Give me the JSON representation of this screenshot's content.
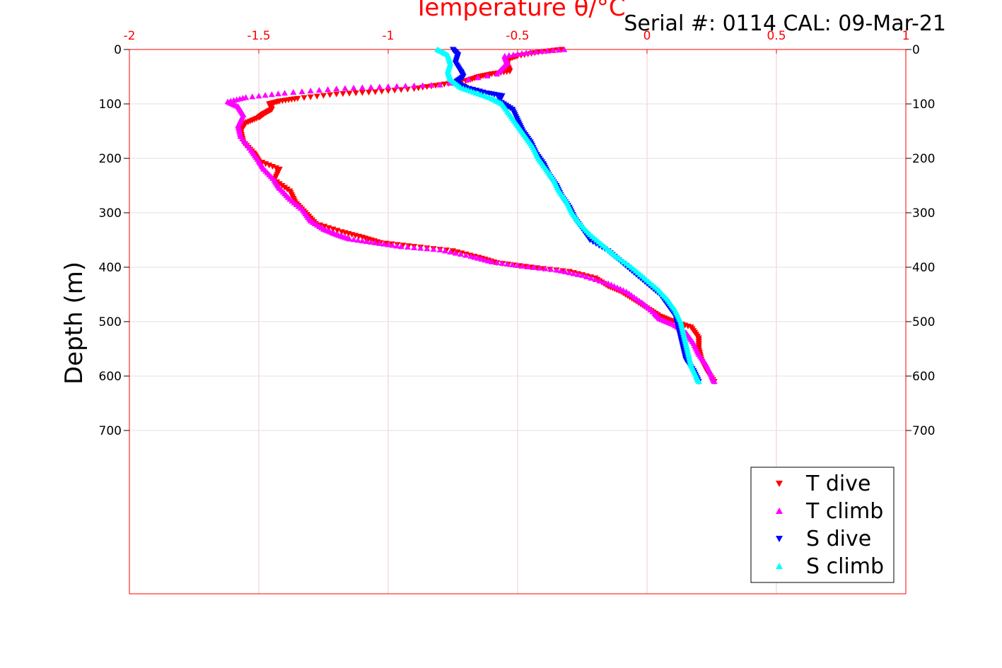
{
  "chart_data": {
    "type": "scatter",
    "xlabel": "Temperature θ/°C",
    "ylabel": "Depth (m)",
    "serial_text": "Serial #: 0114  CAL: 09-Mar-21",
    "xlim": [
      -2,
      1
    ],
    "ylim": [
      0,
      1000
    ],
    "x_ticks": [
      -2,
      -1.5,
      -1,
      -0.5,
      0,
      0.5,
      1
    ],
    "x_tick_labels": [
      "-2",
      "-1.5",
      "-1",
      "-0.5",
      "0",
      "0.5",
      "1"
    ],
    "y_ticks": [
      0,
      100,
      200,
      300,
      400,
      500,
      600,
      700
    ],
    "y_tick_labels": [
      "0",
      "100",
      "200",
      "300",
      "400",
      "500",
      "600",
      "700"
    ],
    "y_reversed": true,
    "grid": true,
    "legend_position": "bottom-right",
    "colors": {
      "axis": "#ff0000",
      "grid": "#f2c8cf"
    },
    "series": [
      {
        "name": "T dive",
        "marker": "triangle-down",
        "color": "#ff0000",
        "points": [
          [
            -0.33,
            0
          ],
          [
            -0.42,
            5
          ],
          [
            -0.5,
            12
          ],
          [
            -0.54,
            18
          ],
          [
            -0.54,
            30
          ],
          [
            -0.53,
            40
          ],
          [
            -0.6,
            45
          ],
          [
            -0.65,
            50
          ],
          [
            -0.7,
            58
          ],
          [
            -0.8,
            65
          ],
          [
            -0.9,
            72
          ],
          [
            -1.05,
            78
          ],
          [
            -1.2,
            82
          ],
          [
            -1.35,
            90
          ],
          [
            -1.42,
            95
          ],
          [
            -1.46,
            100
          ],
          [
            -1.45,
            110
          ],
          [
            -1.48,
            118
          ],
          [
            -1.5,
            125
          ],
          [
            -1.55,
            135
          ],
          [
            -1.57,
            150
          ],
          [
            -1.56,
            170
          ],
          [
            -1.52,
            190
          ],
          [
            -1.5,
            205
          ],
          [
            -1.42,
            220
          ],
          [
            -1.44,
            240
          ],
          [
            -1.38,
            260
          ],
          [
            -1.36,
            280
          ],
          [
            -1.32,
            300
          ],
          [
            -1.28,
            320
          ],
          [
            -1.18,
            335
          ],
          [
            -1.1,
            345
          ],
          [
            -1.03,
            355
          ],
          [
            -0.9,
            362
          ],
          [
            -0.75,
            370
          ],
          [
            -0.65,
            382
          ],
          [
            -0.58,
            392
          ],
          [
            -0.45,
            400
          ],
          [
            -0.3,
            408
          ],
          [
            -0.2,
            420
          ],
          [
            -0.15,
            435
          ],
          [
            -0.1,
            445
          ],
          [
            -0.05,
            460
          ],
          [
            0.0,
            475
          ],
          [
            0.05,
            490
          ],
          [
            0.1,
            500
          ],
          [
            0.17,
            510
          ],
          [
            0.2,
            530
          ],
          [
            0.2,
            550
          ],
          [
            0.21,
            570
          ],
          [
            0.23,
            590
          ],
          [
            0.26,
            610
          ]
        ]
      },
      {
        "name": "T climb",
        "marker": "triangle-up",
        "color": "#ff00ff",
        "points": [
          [
            -0.32,
            0
          ],
          [
            -0.45,
            5
          ],
          [
            -0.55,
            12
          ],
          [
            -0.54,
            25
          ],
          [
            -0.58,
            45
          ],
          [
            -0.8,
            65
          ],
          [
            -1.0,
            68
          ],
          [
            -1.2,
            72
          ],
          [
            -1.4,
            80
          ],
          [
            -1.55,
            88
          ],
          [
            -1.62,
            96
          ],
          [
            -1.58,
            105
          ],
          [
            -1.56,
            120
          ],
          [
            -1.58,
            140
          ],
          [
            -1.57,
            160
          ],
          [
            -1.53,
            185
          ],
          [
            -1.5,
            205
          ],
          [
            -1.48,
            220
          ],
          [
            -1.44,
            240
          ],
          [
            -1.42,
            255
          ],
          [
            -1.38,
            275
          ],
          [
            -1.33,
            295
          ],
          [
            -1.3,
            315
          ],
          [
            -1.25,
            330
          ],
          [
            -1.2,
            340
          ],
          [
            -1.15,
            348
          ],
          [
            -1.05,
            355
          ],
          [
            -0.95,
            362
          ],
          [
            -0.8,
            368
          ],
          [
            -0.68,
            380
          ],
          [
            -0.6,
            390
          ],
          [
            -0.48,
            398
          ],
          [
            -0.35,
            405
          ],
          [
            -0.25,
            415
          ],
          [
            -0.15,
            430
          ],
          [
            -0.08,
            445
          ],
          [
            -0.02,
            465
          ],
          [
            0.03,
            485
          ],
          [
            0.05,
            495
          ],
          [
            0.1,
            505
          ],
          [
            0.15,
            520
          ],
          [
            0.18,
            540
          ],
          [
            0.2,
            560
          ],
          [
            0.23,
            580
          ],
          [
            0.25,
            600
          ],
          [
            0.26,
            610
          ]
        ]
      },
      {
        "name": "S dive",
        "marker": "triangle-down",
        "color": "#0000ff",
        "points": [
          [
            -0.75,
            0
          ],
          [
            -0.73,
            10
          ],
          [
            -0.74,
            25
          ],
          [
            -0.72,
            40
          ],
          [
            -0.71,
            50
          ],
          [
            -0.74,
            60
          ],
          [
            -0.7,
            70
          ],
          [
            -0.62,
            80
          ],
          [
            -0.56,
            85
          ],
          [
            -0.57,
            95
          ],
          [
            -0.52,
            110
          ],
          [
            -0.5,
            130
          ],
          [
            -0.48,
            150
          ],
          [
            -0.45,
            170
          ],
          [
            -0.43,
            190
          ],
          [
            -0.4,
            210
          ],
          [
            -0.38,
            230
          ],
          [
            -0.35,
            250
          ],
          [
            -0.33,
            270
          ],
          [
            -0.3,
            290
          ],
          [
            -0.28,
            310
          ],
          [
            -0.25,
            330
          ],
          [
            -0.22,
            350
          ],
          [
            -0.15,
            370
          ],
          [
            -0.1,
            390
          ],
          [
            -0.05,
            410
          ],
          [
            0.0,
            430
          ],
          [
            0.05,
            450
          ],
          [
            0.08,
            470
          ],
          [
            0.11,
            490
          ],
          [
            0.12,
            510
          ],
          [
            0.13,
            530
          ],
          [
            0.14,
            550
          ],
          [
            0.15,
            570
          ],
          [
            0.18,
            590
          ],
          [
            0.2,
            610
          ]
        ]
      },
      {
        "name": "S climb",
        "marker": "triangle-up",
        "color": "#00ffff",
        "points": [
          [
            -0.81,
            0
          ],
          [
            -0.77,
            10
          ],
          [
            -0.76,
            25
          ],
          [
            -0.77,
            40
          ],
          [
            -0.76,
            55
          ],
          [
            -0.72,
            70
          ],
          [
            -0.66,
            80
          ],
          [
            -0.6,
            90
          ],
          [
            -0.56,
            100
          ],
          [
            -0.53,
            120
          ],
          [
            -0.5,
            140
          ],
          [
            -0.47,
            160
          ],
          [
            -0.44,
            180
          ],
          [
            -0.42,
            200
          ],
          [
            -0.39,
            220
          ],
          [
            -0.36,
            240
          ],
          [
            -0.34,
            260
          ],
          [
            -0.31,
            280
          ],
          [
            -0.29,
            300
          ],
          [
            -0.26,
            320
          ],
          [
            -0.22,
            340
          ],
          [
            -0.17,
            360
          ],
          [
            -0.12,
            380
          ],
          [
            -0.06,
            400
          ],
          [
            -0.01,
            420
          ],
          [
            0.04,
            440
          ],
          [
            0.08,
            460
          ],
          [
            0.11,
            480
          ],
          [
            0.13,
            500
          ],
          [
            0.14,
            520
          ],
          [
            0.15,
            540
          ],
          [
            0.16,
            560
          ],
          [
            0.17,
            580
          ],
          [
            0.19,
            600
          ],
          [
            0.2,
            610
          ]
        ]
      }
    ]
  }
}
